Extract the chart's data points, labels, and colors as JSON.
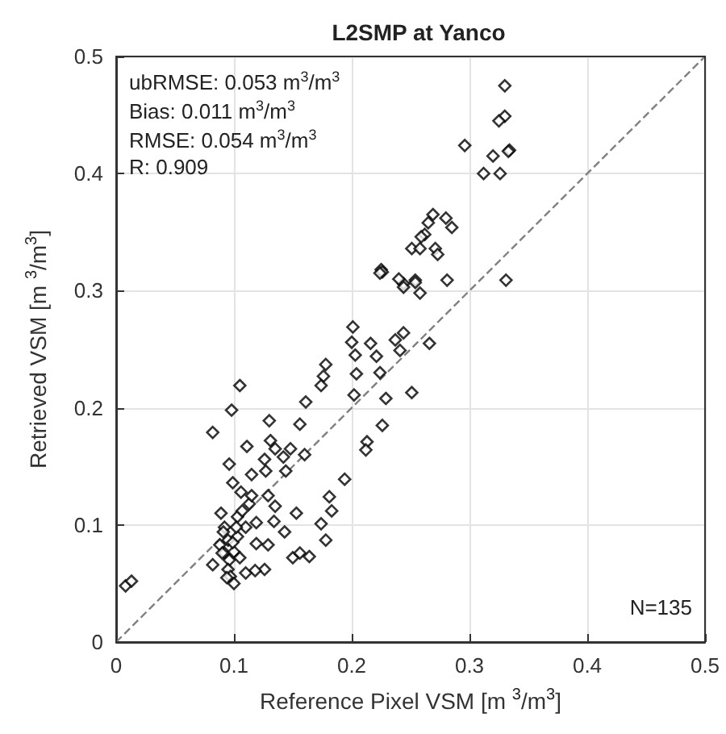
{
  "chart_data": {
    "type": "scatter",
    "title": "L2SMP at Yanco",
    "xlabel": "Reference Pixel VSM [m $^{3}$/m$^{3}$]",
    "ylabel": "Retrieved VSM [m $^{3}$/m$^{3}$]",
    "annotations": [
      "ubRMSE: 0.053 m$^{3}$/m$^{3}$",
      "Bias: 0.011 m$^{3}$/m$^{3}$",
      "RMSE: 0.054 m$^{3}$/m$^{3}$",
      "R: 0.909",
      "N=135"
    ],
    "xlim": [
      0,
      0.5
    ],
    "ylim": [
      0,
      0.5
    ],
    "xticks": [
      0,
      0.1,
      0.2,
      0.3,
      0.4,
      0.5
    ],
    "yticks": [
      0,
      0.1,
      0.2,
      0.3,
      0.4,
      0.5
    ],
    "grid": true,
    "marker": "diamond",
    "series": [
      {
        "color": "#000000",
        "x": [
          0.33,
          0.33,
          0.325,
          0.296,
          0.334,
          0.333,
          0.32,
          0.312,
          0.326,
          0.331,
          0.281,
          0.269,
          0.28,
          0.285,
          0.265,
          0.262,
          0.259,
          0.251,
          0.258,
          0.271,
          0.273,
          0.254,
          0.244,
          0.258,
          0.225,
          0.226,
          0.224,
          0.24,
          0.244,
          0.254,
          0.201,
          0.2,
          0.203,
          0.216,
          0.221,
          0.204,
          0.224,
          0.237,
          0.244,
          0.241,
          0.266,
          0.178,
          0.176,
          0.174,
          0.202,
          0.229,
          0.251,
          0.161,
          0.13,
          0.156,
          0.226,
          0.105,
          0.111,
          0.131,
          0.135,
          0.148,
          0.16,
          0.126,
          0.142,
          0.213,
          0.212,
          0.115,
          0.127,
          0.144,
          0.194,
          0.008,
          0.013,
          0.098,
          0.082,
          0.096,
          0.099,
          0.129,
          0.135,
          0.119,
          0.134,
          0.143,
          0.153,
          0.174,
          0.178,
          0.181,
          0.183,
          0.15,
          0.156,
          0.164,
          0.129,
          0.119,
          0.126,
          0.118,
          0.11,
          0.082,
          0.089,
          0.092,
          0.095,
          0.088,
          0.092,
          0.096,
          0.1,
          0.103,
          0.105,
          0.095,
          0.097,
          0.1,
          0.094,
          0.103,
          0.107,
          0.113,
          0.106,
          0.11,
          0.102,
          0.091,
          0.115,
          0.09,
          0.099
        ],
        "values": [
          0.475,
          0.449,
          0.445,
          0.424,
          0.42,
          0.419,
          0.415,
          0.4,
          0.4,
          0.309,
          0.309,
          0.365,
          0.362,
          0.354,
          0.358,
          0.348,
          0.346,
          0.336,
          0.336,
          0.336,
          0.331,
          0.309,
          0.306,
          0.298,
          0.318,
          0.316,
          0.315,
          0.31,
          0.303,
          0.307,
          0.269,
          0.256,
          0.245,
          0.255,
          0.244,
          0.229,
          0.23,
          0.258,
          0.264,
          0.249,
          0.255,
          0.237,
          0.227,
          0.219,
          0.211,
          0.208,
          0.213,
          0.205,
          0.189,
          0.186,
          0.185,
          0.219,
          0.167,
          0.172,
          0.165,
          0.165,
          0.16,
          0.156,
          0.158,
          0.171,
          0.164,
          0.143,
          0.146,
          0.146,
          0.139,
          0.048,
          0.052,
          0.198,
          0.179,
          0.152,
          0.136,
          0.125,
          0.116,
          0.102,
          0.103,
          0.094,
          0.11,
          0.101,
          0.087,
          0.124,
          0.112,
          0.072,
          0.076,
          0.073,
          0.083,
          0.084,
          0.062,
          0.061,
          0.059,
          0.066,
          0.11,
          0.098,
          0.087,
          0.083,
          0.076,
          0.07,
          0.077,
          0.09,
          0.072,
          0.062,
          0.056,
          0.05,
          0.055,
          0.107,
          0.112,
          0.118,
          0.128,
          0.098,
          0.098,
          0.094,
          0.125,
          0.076,
          0.085
        ]
      },
      {
        "type": "line",
        "color": "#808080",
        "line_style": "dashed",
        "marker": "none",
        "x": [
          0,
          0.5
        ],
        "values": [
          0,
          0.5
        ]
      }
    ]
  }
}
